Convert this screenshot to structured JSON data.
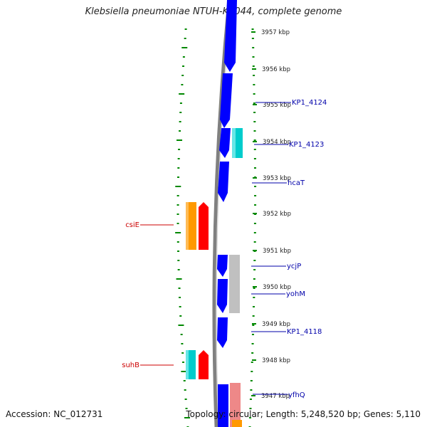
{
  "title": "Klebsiella pneumoniae NTUH-K2044, complete genome",
  "footer": {
    "accession": "Accession: NC_012731",
    "topology": "Topology: circular; Length: 5,248,520 bp; Genes: 5,110"
  },
  "ticks": [
    {
      "label": "3957 kbp",
      "kbp": 3957
    },
    {
      "label": "3956 kbp",
      "kbp": 3956
    },
    {
      "label": "3955 kbp",
      "kbp": 3955
    },
    {
      "label": "3954 kbp",
      "kbp": 3954
    },
    {
      "label": "3953 kbp",
      "kbp": 3953
    },
    {
      "label": "3952 kbp",
      "kbp": 3952
    },
    {
      "label": "3951 kbp",
      "kbp": 3951
    },
    {
      "label": "3950 kbp",
      "kbp": 3950
    },
    {
      "label": "3949 kbp",
      "kbp": 3949
    },
    {
      "label": "3948 kbp",
      "kbp": 3948
    },
    {
      "label": "3947 kbp",
      "kbp": 3947
    }
  ],
  "gene_labels": [
    {
      "text": "KP1_4124",
      "color": "#0000aa"
    },
    {
      "text": "KP1_4123",
      "color": "#0000aa"
    },
    {
      "text": "hcaT",
      "color": "#0000aa"
    },
    {
      "text": "csiE",
      "color": "#cc0000"
    },
    {
      "text": "ycjP",
      "color": "#0000aa"
    },
    {
      "text": "yohM",
      "color": "#0000aa"
    },
    {
      "text": "KP1_4118",
      "color": "#0000aa"
    },
    {
      "text": "suhB",
      "color": "#cc0000"
    },
    {
      "text": "yfhQ",
      "color": "#0000aa"
    }
  ],
  "colors": {
    "backbone": "#808080",
    "cds": "#0000ff",
    "trna": "#ff9900",
    "rrna": "#ff0000",
    "other": "#00cccc",
    "gray_feature": "#c0c0c0",
    "pink_feature": "#ee8888",
    "gc_ticks": "#008800"
  }
}
